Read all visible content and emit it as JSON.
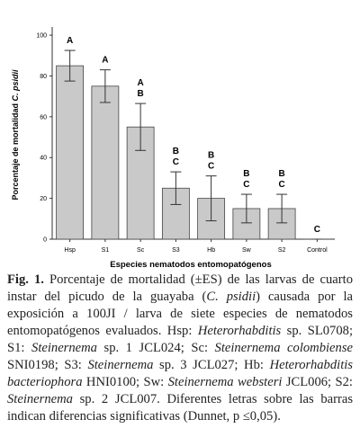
{
  "chart_data": {
    "type": "bar",
    "y_label": [
      "Porcentaje de mortalidad ",
      "C. psidii"
    ],
    "x_label": "Especies nematodos entomopatógenos",
    "categories": [
      "Hsp",
      "S1",
      "Sc",
      "S3",
      "Hb",
      "Sw",
      "S2",
      "Control"
    ],
    "values": [
      85,
      75,
      55,
      25,
      20,
      15,
      15,
      0
    ],
    "errors": [
      7.5,
      8,
      11.5,
      8,
      11,
      7,
      7,
      0
    ],
    "letters": [
      [
        "A"
      ],
      [
        "A"
      ],
      [
        "A",
        "B"
      ],
      [
        "B",
        "C"
      ],
      [
        "B",
        "C"
      ],
      [
        "B",
        "C"
      ],
      [
        "B",
        "C"
      ],
      [
        "C"
      ]
    ],
    "color": "#c9c9c9",
    "ylim": [
      0,
      104
    ],
    "yticks": [
      0,
      20,
      40,
      60,
      80,
      100
    ]
  },
  "caption": {
    "runs": [
      {
        "text": "Fig. 1.",
        "style": "bold"
      },
      {
        "text": " Porcentaje de mortalidad (±ES) de las larvas de cuarto instar del picudo de la guayaba (",
        "style": "normal"
      },
      {
        "text": "C. psidii",
        "style": "italic"
      },
      {
        "text": ") causada por la exposición a 100JI / larva de siete especies de nematodos entomopatógenos evaluados. Hsp: ",
        "style": "normal"
      },
      {
        "text": "Heterorhabditis",
        "style": "italic"
      },
      {
        "text": " sp. SL0708; S1: ",
        "style": "normal"
      },
      {
        "text": "Steinernema",
        "style": "italic"
      },
      {
        "text": " sp. 1 JCL024; Sc: ",
        "style": "normal"
      },
      {
        "text": "Steinernema colombiense",
        "style": "italic"
      },
      {
        "text": " SNI0198; S3: ",
        "style": "normal"
      },
      {
        "text": "Steinernema",
        "style": "italic"
      },
      {
        "text": " sp. 3 JCL027; Hb: ",
        "style": "normal"
      },
      {
        "text": "Heterorhabditis bacteriophora",
        "style": "italic"
      },
      {
        "text": " HNI0100; Sw: ",
        "style": "normal"
      },
      {
        "text": "Steinernema websteri",
        "style": "italic"
      },
      {
        "text": " JCL006; S2: ",
        "style": "normal"
      },
      {
        "text": "Steinernema",
        "style": "italic"
      },
      {
        "text": " sp. 2 JCL007. Diferentes letras sobre las barras indican diferencias significativas (Dunnet, p ≤0,05).",
        "style": "normal"
      }
    ]
  }
}
